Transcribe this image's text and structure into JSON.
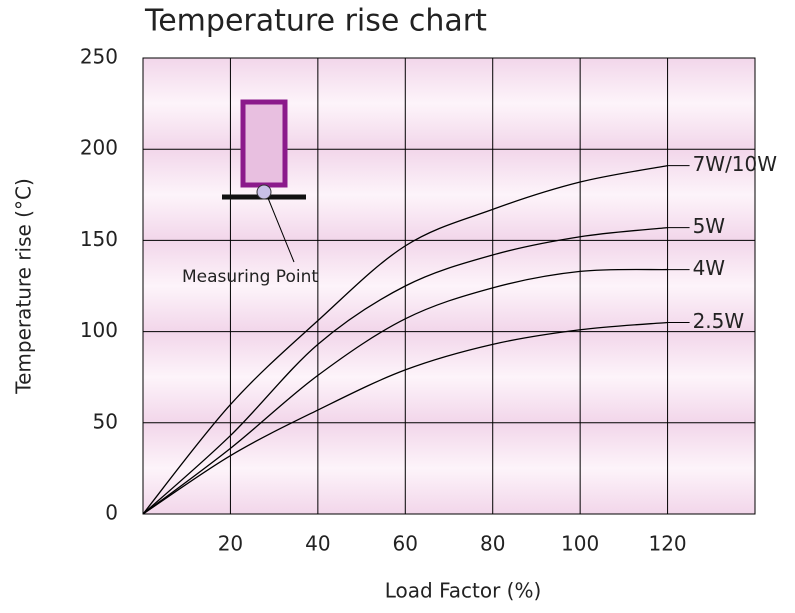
{
  "chart_data": {
    "type": "line",
    "title": "Temperature rise chart",
    "x_label": "Load Factor (%)",
    "y_label": "Temperature rise (°C)",
    "annotation": "Measuring Point",
    "x": [
      0,
      20,
      40,
      60,
      80,
      100,
      120
    ],
    "series": [
      {
        "name": "7W/10W",
        "color": "#000000",
        "values": [
          0,
          60,
          106,
          147,
          167,
          182,
          191
        ]
      },
      {
        "name": "5W",
        "color": "#000000",
        "values": [
          0,
          43,
          93,
          125,
          142,
          152,
          157
        ]
      },
      {
        "name": "4W",
        "color": "#000000",
        "values": [
          0,
          36,
          76,
          107,
          124,
          133,
          134
        ]
      },
      {
        "name": "2.5W",
        "color": "#000000",
        "values": [
          0,
          32,
          57,
          79,
          93,
          101,
          105
        ]
      }
    ],
    "xlim": [
      0,
      140
    ],
    "xticks": [
      20,
      40,
      60,
      80,
      100,
      120
    ],
    "ylim": [
      0,
      250
    ],
    "yticks": [
      0,
      50,
      100,
      150,
      200,
      250
    ],
    "grid": true
  }
}
